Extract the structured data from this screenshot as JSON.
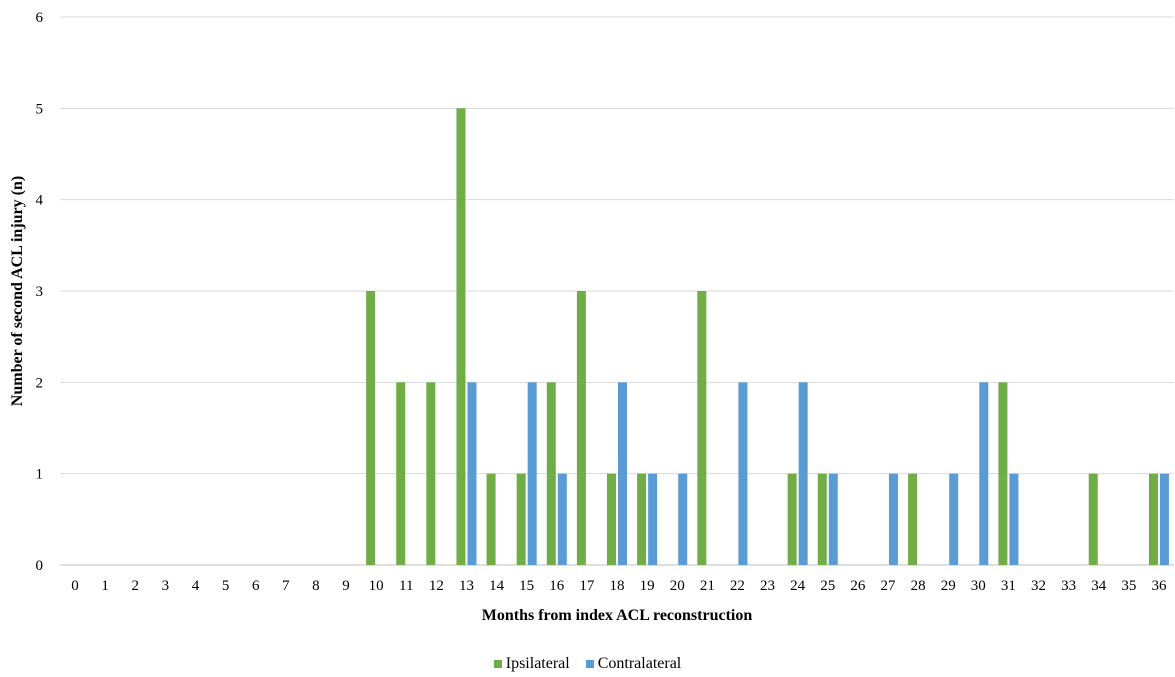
{
  "chart_data": {
    "type": "bar",
    "title": "",
    "xlabel": "Months from index ACL reconstruction",
    "ylabel": "Number of second ACL injury (n)",
    "ylim": [
      0,
      6
    ],
    "yticks": [
      0,
      1,
      2,
      3,
      4,
      5,
      6
    ],
    "grid": true,
    "legend_position": "bottom",
    "categories": [
      "0",
      "1",
      "2",
      "3",
      "4",
      "5",
      "6",
      "7",
      "8",
      "9",
      "10",
      "11",
      "12",
      "13",
      "14",
      "15",
      "16",
      "17",
      "18",
      "19",
      "20",
      "21",
      "22",
      "23",
      "24",
      "25",
      "26",
      "27",
      "28",
      "29",
      "30",
      "31",
      "32",
      "33",
      "34",
      "35",
      "36"
    ],
    "series": [
      {
        "name": "Ipsilateral",
        "color": "#70ad47",
        "values": [
          0,
          0,
          0,
          0,
          0,
          0,
          0,
          0,
          0,
          0,
          3,
          2,
          2,
          5,
          1,
          1,
          2,
          3,
          1,
          1,
          0,
          3,
          0,
          0,
          1,
          1,
          0,
          0,
          1,
          0,
          0,
          2,
          0,
          0,
          1,
          0,
          1
        ]
      },
      {
        "name": "Contralateral",
        "color": "#5b9bd5",
        "values": [
          0,
          0,
          0,
          0,
          0,
          0,
          0,
          0,
          0,
          0,
          0,
          0,
          0,
          2,
          0,
          2,
          1,
          0,
          2,
          1,
          1,
          0,
          2,
          0,
          2,
          1,
          0,
          1,
          0,
          1,
          2,
          1,
          0,
          0,
          0,
          0,
          1
        ]
      }
    ]
  }
}
